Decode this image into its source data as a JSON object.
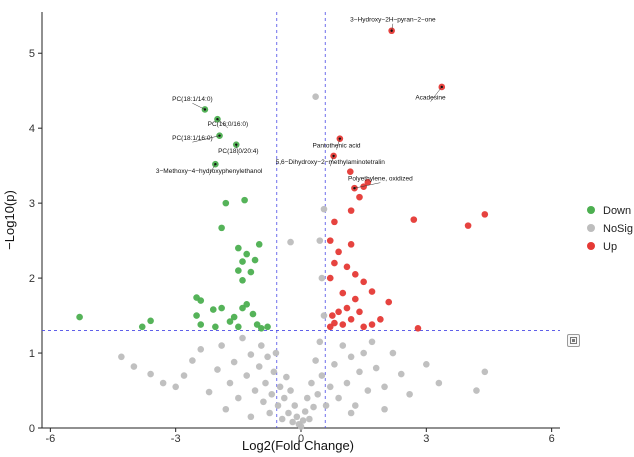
{
  "chart_data": {
    "type": "scatter",
    "xlabel": "Log2(Fold Change)",
    "ylabel": "−Log10(p)",
    "xlim": [
      -6.2,
      6.2
    ],
    "ylim": [
      0,
      5.55
    ],
    "x_ticks": [
      -6,
      -3,
      0,
      3,
      6
    ],
    "y_ticks": [
      0,
      1,
      2,
      3,
      4,
      5
    ],
    "thresholds": {
      "fold_change": [
        -0.58,
        0.58
      ],
      "p_value": 1.3
    },
    "legend_position": "right",
    "series": [
      {
        "name": "Down",
        "color": "#4caf50",
        "points": [
          [
            -5.3,
            1.48
          ],
          [
            -3.8,
            1.35
          ],
          [
            -3.6,
            1.43
          ],
          [
            -2.5,
            1.5
          ],
          [
            -2.4,
            1.38
          ],
          [
            -2.5,
            1.74
          ],
          [
            -2.4,
            1.7
          ],
          [
            -2.1,
            1.58
          ],
          [
            -2.05,
            1.35
          ],
          [
            -1.9,
            1.6
          ],
          [
            -1.7,
            1.42
          ],
          [
            -1.6,
            1.48
          ],
          [
            -1.5,
            1.35
          ],
          [
            -1.4,
            1.6
          ],
          [
            -1.3,
            1.65
          ],
          [
            -1.15,
            1.52
          ],
          [
            -1.05,
            1.38
          ],
          [
            -0.95,
            1.33
          ],
          [
            -0.8,
            1.35
          ],
          [
            -1.8,
            3.0
          ],
          [
            -1.35,
            3.04
          ],
          [
            -1.9,
            2.67
          ],
          [
            -1.5,
            2.1
          ],
          [
            -1.4,
            2.22
          ],
          [
            -1.3,
            2.32
          ],
          [
            -1.2,
            2.08
          ],
          [
            -1.1,
            2.24
          ],
          [
            -1.0,
            2.45
          ],
          [
            -1.5,
            2.4
          ],
          [
            -1.4,
            1.97
          ],
          [
            -2.3,
            4.25
          ],
          [
            -2.0,
            4.12
          ],
          [
            -1.95,
            3.9
          ],
          [
            -1.55,
            3.78
          ],
          [
            -2.05,
            3.52
          ]
        ]
      },
      {
        "name": "NoSig",
        "color": "#bdbdbd",
        "points": [
          [
            -4.3,
            0.95
          ],
          [
            -4.0,
            0.82
          ],
          [
            -3.6,
            0.72
          ],
          [
            -3.3,
            0.6
          ],
          [
            -3.0,
            0.55
          ],
          [
            -2.8,
            0.7
          ],
          [
            -2.6,
            0.9
          ],
          [
            -2.4,
            1.05
          ],
          [
            -2.2,
            0.48
          ],
          [
            -2.0,
            0.78
          ],
          [
            -1.9,
            1.1
          ],
          [
            -1.7,
            0.6
          ],
          [
            -1.6,
            0.88
          ],
          [
            -1.5,
            0.4
          ],
          [
            -1.4,
            1.2
          ],
          [
            -1.3,
            0.7
          ],
          [
            -1.2,
            0.98
          ],
          [
            -1.1,
            0.5
          ],
          [
            -1.0,
            0.82
          ],
          [
            -0.95,
            1.1
          ],
          [
            -0.9,
            0.35
          ],
          [
            -0.85,
            0.6
          ],
          [
            -0.8,
            0.95
          ],
          [
            -0.75,
            0.2
          ],
          [
            -0.7,
            0.45
          ],
          [
            -0.65,
            0.75
          ],
          [
            -0.6,
            1.0
          ],
          [
            -0.55,
            0.3
          ],
          [
            -0.5,
            0.55
          ],
          [
            -0.45,
            0.12
          ],
          [
            -0.4,
            0.4
          ],
          [
            -0.35,
            0.68
          ],
          [
            -0.3,
            0.2
          ],
          [
            -0.25,
            0.5
          ],
          [
            -0.2,
            0.08
          ],
          [
            -0.15,
            0.3
          ],
          [
            -0.1,
            0.15
          ],
          [
            -0.05,
            0.05
          ],
          [
            0.0,
            0.02
          ],
          [
            0.05,
            0.1
          ],
          [
            0.1,
            0.22
          ],
          [
            0.15,
            0.4
          ],
          [
            0.2,
            0.12
          ],
          [
            0.25,
            0.6
          ],
          [
            0.3,
            0.28
          ],
          [
            0.35,
            0.9
          ],
          [
            0.4,
            0.45
          ],
          [
            0.45,
            1.15
          ],
          [
            0.5,
            0.7
          ],
          [
            0.55,
            1.5
          ],
          [
            0.5,
            2.0
          ],
          [
            0.45,
            2.5
          ],
          [
            0.55,
            2.92
          ],
          [
            0.35,
            4.42
          ],
          [
            -0.25,
            2.48
          ],
          [
            0.6,
            0.3
          ],
          [
            0.7,
            0.55
          ],
          [
            0.8,
            0.85
          ],
          [
            0.9,
            0.4
          ],
          [
            1.0,
            1.1
          ],
          [
            1.1,
            0.6
          ],
          [
            1.2,
            0.95
          ],
          [
            1.3,
            0.3
          ],
          [
            1.4,
            0.75
          ],
          [
            1.5,
            1.0
          ],
          [
            1.6,
            0.5
          ],
          [
            1.7,
            1.15
          ],
          [
            1.8,
            0.8
          ],
          [
            2.0,
            0.55
          ],
          [
            2.2,
            1.0
          ],
          [
            2.4,
            0.72
          ],
          [
            2.6,
            0.45
          ],
          [
            3.0,
            0.85
          ],
          [
            3.3,
            0.6
          ],
          [
            4.2,
            0.5
          ],
          [
            4.4,
            0.75
          ],
          [
            -1.8,
            0.25
          ],
          [
            -1.2,
            0.15
          ],
          [
            1.2,
            0.2
          ],
          [
            2.0,
            0.25
          ]
        ]
      },
      {
        "name": "Up",
        "color": "#e53935",
        "points": [
          [
            0.7,
            1.35
          ],
          [
            0.75,
            1.5
          ],
          [
            0.8,
            1.4
          ],
          [
            0.9,
            1.55
          ],
          [
            1.0,
            1.38
          ],
          [
            1.1,
            1.6
          ],
          [
            1.2,
            1.45
          ],
          [
            1.3,
            1.72
          ],
          [
            1.4,
            1.55
          ],
          [
            1.5,
            1.35
          ],
          [
            1.7,
            1.38
          ],
          [
            1.9,
            1.45
          ],
          [
            2.1,
            1.68
          ],
          [
            2.8,
            1.33
          ],
          [
            0.7,
            2.0
          ],
          [
            0.8,
            2.2
          ],
          [
            0.9,
            2.35
          ],
          [
            0.7,
            2.5
          ],
          [
            0.8,
            2.75
          ],
          [
            1.0,
            1.8
          ],
          [
            1.1,
            2.15
          ],
          [
            1.2,
            2.45
          ],
          [
            1.3,
            2.05
          ],
          [
            1.5,
            1.95
          ],
          [
            1.7,
            1.82
          ],
          [
            1.2,
            2.9
          ],
          [
            1.4,
            3.08
          ],
          [
            1.6,
            3.28
          ],
          [
            2.7,
            2.78
          ],
          [
            4.0,
            2.7
          ],
          [
            4.4,
            2.85
          ],
          [
            1.5,
            3.22
          ],
          [
            0.93,
            3.86
          ],
          [
            0.78,
            3.63
          ],
          [
            1.18,
            3.42
          ],
          [
            1.28,
            3.2
          ],
          [
            3.37,
            4.55
          ],
          [
            2.17,
            5.3
          ]
        ]
      }
    ],
    "annotations": [
      {
        "label": "3−Hydroxy−2H−pyran−2−one",
        "x": 2.17,
        "y": 5.3,
        "lx": 2.2,
        "ly": 5.42
      },
      {
        "label": "Acadesine",
        "x": 3.37,
        "y": 4.55,
        "lx": 3.1,
        "ly": 4.38
      },
      {
        "label": "PC(18:1/14:0)",
        "x": -2.3,
        "y": 4.25,
        "lx": -2.6,
        "ly": 4.36
      },
      {
        "label": "PC(16:0/16:0)",
        "x": -2.0,
        "y": 4.12,
        "lx": -1.75,
        "ly": 4.03
      },
      {
        "label": "PC(18:1/16:0)",
        "x": -1.95,
        "y": 3.9,
        "lx": -2.6,
        "ly": 3.84
      },
      {
        "label": "PC(18:0/20:4)",
        "x": -1.55,
        "y": 3.78,
        "lx": -1.5,
        "ly": 3.67
      },
      {
        "label": "Pantothenic acid",
        "x": 0.93,
        "y": 3.86,
        "lx": 0.85,
        "ly": 3.74
      },
      {
        "label": "5,6−Dihydroxy−2−methylaminotetralin",
        "x": 0.78,
        "y": 3.63,
        "lx": 0.7,
        "ly": 3.52
      },
      {
        "label": "3−Methoxy−4−hydroxyphenylethanol",
        "x": -2.05,
        "y": 3.52,
        "lx": -2.2,
        "ly": 3.4
      },
      {
        "label": "Polyethylene, oxidized",
        "x": 1.28,
        "y": 3.2,
        "lx": 1.9,
        "ly": 3.3
      }
    ]
  }
}
